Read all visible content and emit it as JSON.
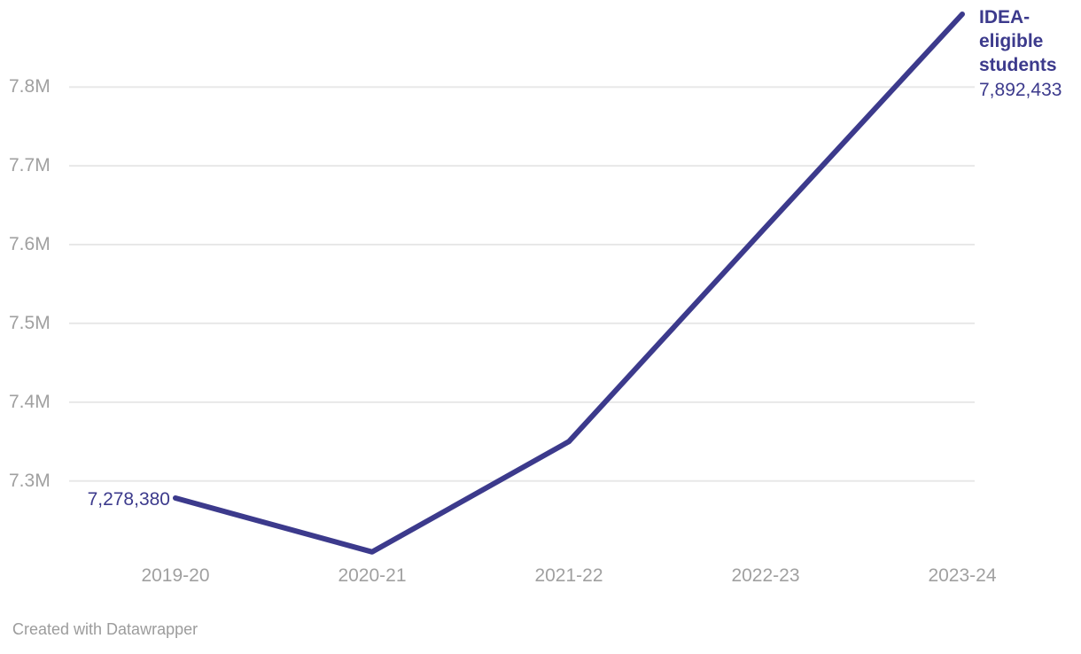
{
  "colors": {
    "background": "#ffffff",
    "line": "#3c3a8c",
    "grid": "#e8e8e8",
    "axis_text": "#a0a0a0",
    "annotation_text": "#3c3a8c",
    "footer_text": "#9c9c9c"
  },
  "chart_data": {
    "type": "line",
    "title": "",
    "xlabel": "",
    "ylabel": "",
    "categories": [
      "2019-20",
      "2020-21",
      "2021-22",
      "2022-23",
      "2023-24"
    ],
    "series": [
      {
        "name": "IDEA-eligible students",
        "values": [
          7278380,
          7210000,
          7350000,
          7622000,
          7892433
        ]
      }
    ],
    "y_ticks": [
      {
        "label": "7.3M",
        "value": 7300000
      },
      {
        "label": "7.4M",
        "value": 7400000
      },
      {
        "label": "7.5M",
        "value": 7500000
      },
      {
        "label": "7.6M",
        "value": 7600000
      },
      {
        "label": "7.7M",
        "value": 7700000
      },
      {
        "label": "7.8M",
        "value": 7800000
      }
    ],
    "ylim": [
      7190000,
      7910000
    ],
    "grid": "horizontal",
    "legend_position": "none",
    "point_labels": {
      "first": "7,278,380",
      "last": "7,892,433"
    },
    "annotation": {
      "label": "IDEA-eligible students",
      "label_lines": [
        "IDEA-",
        "eligible",
        "students"
      ],
      "value": "7,892,433"
    }
  },
  "footer": {
    "credit": "Created with Datawrapper"
  }
}
